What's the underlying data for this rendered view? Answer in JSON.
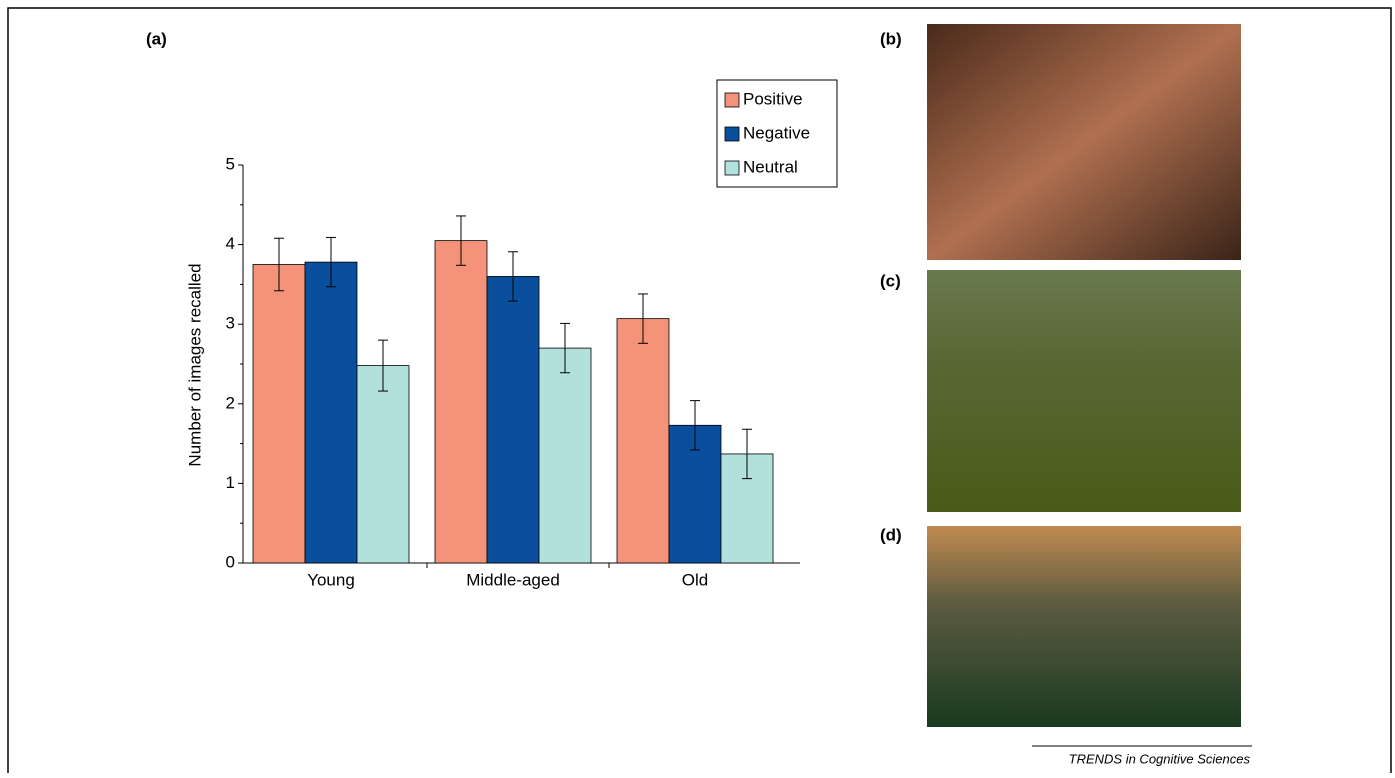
{
  "panels": [
    "(a)",
    "(b)",
    "(c)",
    "(d)"
  ],
  "footer": "TRENDS in Cognitive Sciences",
  "chart_data": {
    "type": "bar",
    "y_label": "Number of images recalled",
    "categories": [
      "Young",
      "Middle-aged",
      "Old"
    ],
    "series": [
      {
        "name": "Positive",
        "color": "#f4937a",
        "values": [
          3.75,
          4.05,
          3.07
        ],
        "errors": [
          0.33,
          0.31,
          0.31
        ]
      },
      {
        "name": "Negative",
        "color": "#0a4f9e",
        "values": [
          3.78,
          3.6,
          1.73
        ],
        "errors": [
          0.31,
          0.31,
          0.31
        ]
      },
      {
        "name": "Neutral",
        "color": "#b2e0dc",
        "values": [
          2.48,
          2.7,
          1.37
        ],
        "errors": [
          0.32,
          0.31,
          0.31
        ]
      }
    ],
    "ylim": [
      0,
      5
    ],
    "yticks": [
      0,
      1,
      2,
      3,
      4,
      5
    ],
    "legend": "upper right"
  }
}
